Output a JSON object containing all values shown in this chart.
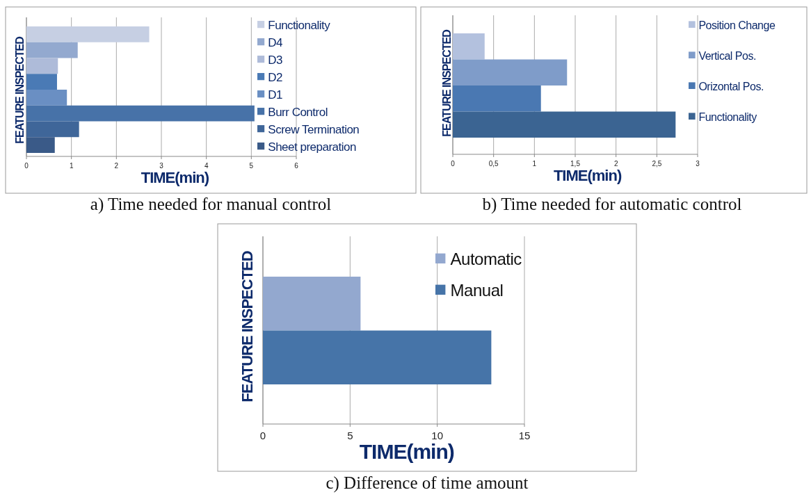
{
  "chart_data": [
    {
      "type": "bar",
      "orientation": "horizontal",
      "title": "a) Time needed for manual control",
      "xlabel": "TIME(min)",
      "ylabel": "FEATURE INSPECTED",
      "categories": [
        null
      ],
      "xlim": [
        0,
        6
      ],
      "xticks": [
        0,
        1,
        2,
        3,
        4,
        5,
        6
      ],
      "grid": "x",
      "legend": "right",
      "series": [
        {
          "name": "Functionality",
          "color": "#c6cfe3",
          "values": [
            2.73
          ]
        },
        {
          "name": "D4",
          "color": "#93a9cf",
          "values": [
            1.14
          ]
        },
        {
          "name": "D3",
          "color": "#aebbd9",
          "values": [
            0.7
          ]
        },
        {
          "name": "D2",
          "color": "#4a7ab5",
          "values": [
            0.68
          ]
        },
        {
          "name": "D1",
          "color": "#6a8fc3",
          "values": [
            0.9
          ]
        },
        {
          "name": "Burr Control",
          "color": "#4772a8",
          "values": [
            5.07
          ]
        },
        {
          "name": "Screw Termination",
          "color": "#3f6699",
          "values": [
            1.17
          ]
        },
        {
          "name": "Sheet preparation",
          "color": "#3a5a88",
          "values": [
            0.63
          ]
        }
      ]
    },
    {
      "type": "bar",
      "orientation": "horizontal",
      "title": "b) Time needed for automatic control",
      "xlabel": "TIME(min)",
      "ylabel": "FEATURE INSPECTED",
      "categories": [
        null
      ],
      "xlim": [
        0,
        3
      ],
      "xticks": [
        0,
        {
          "value": 0.5,
          "label": "0,5"
        },
        1,
        {
          "value": 1.5,
          "label": "1,5"
        },
        2,
        {
          "value": 2.5,
          "label": "2,5"
        },
        3
      ],
      "grid": "x",
      "legend": "right",
      "series": [
        {
          "name": "Position Change",
          "color": "#b3c1de",
          "values": [
            0.39
          ]
        },
        {
          "name": "Vertical Pos.",
          "color": "#7f9cc9",
          "values": [
            1.4
          ]
        },
        {
          "name": "Orizontal Pos.",
          "color": "#4a78b2",
          "values": [
            1.08
          ]
        },
        {
          "name": "Functionality",
          "color": "#3b6492",
          "values": [
            2.73
          ]
        }
      ]
    },
    {
      "type": "bar",
      "orientation": "horizontal",
      "title": "c) Difference of time amount",
      "xlabel": "TIME(min)",
      "ylabel": "FEATURE INSPECTED",
      "categories": [
        null
      ],
      "xlim": [
        0,
        15
      ],
      "xticks": [
        0,
        5,
        10,
        15
      ],
      "grid": "x",
      "legend": "top right",
      "series": [
        {
          "name": "Automatic",
          "color": "#93a8cf",
          "values": [
            5.6
          ]
        },
        {
          "name": "Manual",
          "color": "#4674a8",
          "values": [
            13.1
          ]
        }
      ]
    }
  ]
}
